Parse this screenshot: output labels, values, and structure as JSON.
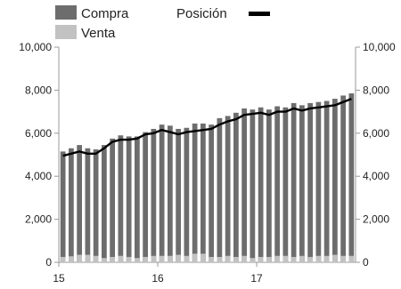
{
  "chart_data": {
    "type": "bar",
    "title": "",
    "xlabel": "",
    "ylabel": "",
    "ylim": [
      0,
      10000
    ],
    "yticks": [
      "0",
      "2,000",
      "4,000",
      "6,000",
      "8,000",
      "10,000"
    ],
    "yticks_right": [
      "0",
      "2,000",
      "4,000",
      "6,000",
      "8,000",
      "10,000"
    ],
    "x_tick_labels": [
      {
        "label": "15",
        "index": 0
      },
      {
        "label": "16",
        "index": 12
      },
      {
        "label": "17",
        "index": 24
      }
    ],
    "grid": false,
    "legend": {
      "placement": "top"
    },
    "categories": [
      "2015-01",
      "2015-02",
      "2015-03",
      "2015-04",
      "2015-05",
      "2015-06",
      "2015-07",
      "2015-08",
      "2015-09",
      "2015-10",
      "2015-11",
      "2015-12",
      "2016-01",
      "2016-02",
      "2016-03",
      "2016-04",
      "2016-05",
      "2016-06",
      "2016-07",
      "2016-08",
      "2016-09",
      "2016-10",
      "2016-11",
      "2016-12",
      "2017-01",
      "2017-02",
      "2017-03",
      "2017-04",
      "2017-05",
      "2017-06",
      "2017-07",
      "2017-08",
      "2017-09",
      "2017-10",
      "2017-11",
      "2017-12"
    ],
    "series": [
      {
        "name": "Compra",
        "kind": "bar",
        "color": "#6d6d6d",
        "values": [
          5150,
          5300,
          5450,
          5300,
          5250,
          5450,
          5750,
          5900,
          5850,
          5850,
          6050,
          6200,
          6400,
          6350,
          6200,
          6250,
          6450,
          6450,
          6400,
          6700,
          6800,
          6950,
          7150,
          7100,
          7200,
          7100,
          7250,
          7200,
          7400,
          7300,
          7400,
          7450,
          7500,
          7600,
          7750,
          7850
        ]
      },
      {
        "name": "Venta",
        "kind": "bar",
        "color": "#c2c2c2",
        "values": [
          250,
          280,
          350,
          350,
          300,
          200,
          250,
          300,
          250,
          200,
          250,
          300,
          300,
          300,
          350,
          300,
          400,
          400,
          250,
          250,
          300,
          250,
          300,
          200,
          250,
          250,
          300,
          300,
          250,
          300,
          250,
          300,
          300,
          350,
          300,
          300
        ]
      },
      {
        "name": "Posición",
        "kind": "line",
        "color": "#000000",
        "values": [
          4950,
          5050,
          5150,
          5050,
          5050,
          5300,
          5600,
          5700,
          5700,
          5750,
          5950,
          6000,
          6150,
          6050,
          5950,
          6050,
          6100,
          6150,
          6200,
          6400,
          6550,
          6650,
          6850,
          6900,
          6950,
          6850,
          7000,
          7000,
          7150,
          7050,
          7150,
          7200,
          7250,
          7300,
          7450,
          7600
        ]
      }
    ]
  }
}
